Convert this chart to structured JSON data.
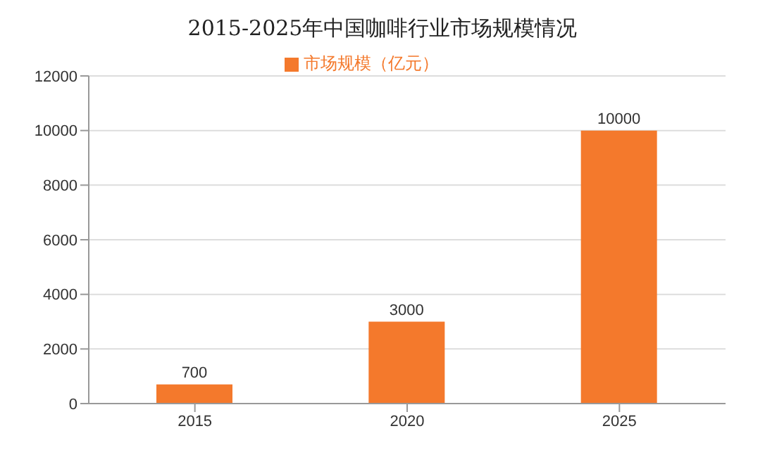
{
  "chart_data": {
    "type": "bar",
    "title": "2015-2025年中国咖啡行业市场规模情况",
    "categories": [
      "2015",
      "2020",
      "2025"
    ],
    "series": [
      {
        "name": "市场规模（亿元）",
        "color": "#f4792c",
        "values": [
          700,
          3000,
          10000
        ]
      }
    ],
    "ylim": [
      0,
      12000
    ],
    "yticks": [
      0,
      2000,
      4000,
      6000,
      8000,
      10000,
      12000
    ],
    "grid": "y",
    "legend": "top",
    "data_labels": true
  }
}
